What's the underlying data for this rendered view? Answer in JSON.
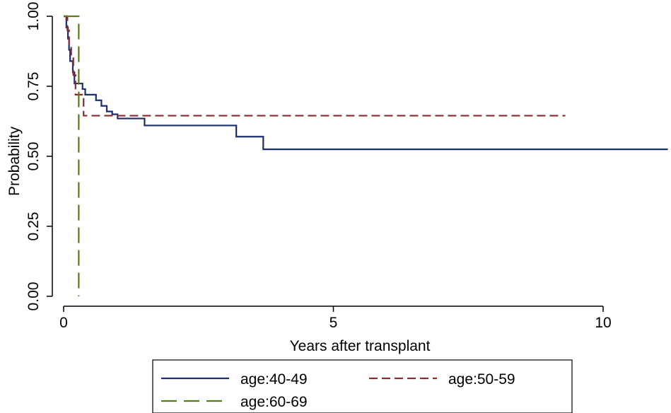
{
  "chart_data": {
    "type": "line",
    "step": true,
    "title": "",
    "xlabel": "Years after transplant",
    "ylabel": "Probability",
    "xlim": [
      -0.2,
      11.3
    ],
    "ylim": [
      0.0,
      1.0
    ],
    "xticks": [
      0,
      5,
      10
    ],
    "xtick_labels": [
      "0",
      "5",
      "10"
    ],
    "yticks": [
      0.0,
      0.25,
      0.5,
      0.75,
      1.0
    ],
    "ytick_labels": [
      "0.00",
      "0.25",
      "0.50",
      "0.75",
      "1.00"
    ],
    "grid": false,
    "legend_position": "bottom",
    "series": [
      {
        "name": "age:40-49",
        "color": "#1a2f6b",
        "dash": "solid",
        "points": [
          [
            0.0,
            1.0
          ],
          [
            0.05,
            0.96
          ],
          [
            0.08,
            0.92
          ],
          [
            0.1,
            0.88
          ],
          [
            0.12,
            0.84
          ],
          [
            0.17,
            0.8
          ],
          [
            0.2,
            0.76
          ],
          [
            0.35,
            0.74
          ],
          [
            0.4,
            0.72
          ],
          [
            0.6,
            0.7
          ],
          [
            0.7,
            0.68
          ],
          [
            0.8,
            0.66
          ],
          [
            0.9,
            0.65
          ],
          [
            1.0,
            0.635
          ],
          [
            1.5,
            0.61
          ],
          [
            3.2,
            0.57
          ],
          [
            3.7,
            0.525
          ],
          [
            11.2,
            0.525
          ]
        ]
      },
      {
        "name": "age:50-59",
        "color": "#8b2a2f",
        "dash": "dashed",
        "points": [
          [
            0.0,
            1.0
          ],
          [
            0.07,
            0.95
          ],
          [
            0.1,
            0.9
          ],
          [
            0.14,
            0.86
          ],
          [
            0.18,
            0.79
          ],
          [
            0.22,
            0.72
          ],
          [
            0.37,
            0.645
          ],
          [
            9.3,
            0.645
          ]
        ]
      },
      {
        "name": "age:60-69",
        "color": "#5a7a1c",
        "dash": "longdash",
        "points": [
          [
            0.0,
            1.0
          ],
          [
            0.28,
            1.0
          ],
          [
            0.28,
            0.0
          ]
        ]
      }
    ]
  }
}
